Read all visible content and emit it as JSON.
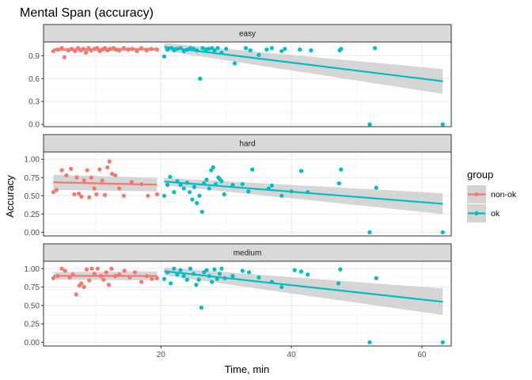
{
  "chart_data": {
    "type": "scatter",
    "title": "Mental Span (accuracy)",
    "xlabel": "Time, min",
    "ylabel": "Accuracy",
    "xlim": [
      2,
      64.5
    ],
    "x_ticks": [
      20,
      40,
      60
    ],
    "grid": true,
    "legend": {
      "title": "group",
      "position": "right",
      "entries": [
        {
          "name": "non-ok",
          "color": "#F8766D"
        },
        {
          "name": "ok",
          "color": "#00BFC4"
        }
      ]
    },
    "colors": {
      "non-ok": "#F8766D",
      "ok": "#00BFC4",
      "ribbon": "#cccccc"
    },
    "panels": [
      {
        "facet": "easy",
        "ylim": [
          -0.03,
          1.08
        ],
        "y_ticks": [
          0.0,
          0.3,
          0.6,
          0.9
        ],
        "y_tick_labels": [
          "0.0",
          "0.3",
          "0.6",
          "0.9"
        ],
        "series": [
          {
            "name": "non-ok",
            "points": [
              [
                3.5,
                0.96
              ],
              [
                4.2,
                0.98
              ],
              [
                4.8,
                1.0
              ],
              [
                5.2,
                0.88
              ],
              [
                5.8,
                0.97
              ],
              [
                6.3,
                0.99
              ],
              [
                6.8,
                0.96
              ],
              [
                7.3,
                1.0
              ],
              [
                7.7,
                0.97
              ],
              [
                8.1,
                0.99
              ],
              [
                8.5,
                0.94
              ],
              [
                8.9,
                1.0
              ],
              [
                9.3,
                0.97
              ],
              [
                9.8,
                0.99
              ],
              [
                10.2,
                1.0
              ],
              [
                10.6,
                0.96
              ],
              [
                11.0,
                0.98
              ],
              [
                11.4,
                1.0
              ],
              [
                11.8,
                0.97
              ],
              [
                12.2,
                0.99
              ],
              [
                12.7,
                1.0
              ],
              [
                13.1,
                0.98
              ],
              [
                13.6,
                0.97
              ],
              [
                14.3,
                1.0
              ],
              [
                15.0,
                0.98
              ],
              [
                15.6,
                0.99
              ],
              [
                16.3,
                0.96
              ],
              [
                17.0,
                1.0
              ],
              [
                17.8,
                0.97
              ],
              [
                18.5,
                0.99
              ],
              [
                19.4,
                0.98
              ]
            ],
            "fit": {
              "x": [
                3.5,
                19.4
              ],
              "y": [
                0.98,
                0.985
              ],
              "ci_low": [
                0.955,
                0.96
              ],
              "ci_high": [
                1.005,
                1.01
              ]
            }
          },
          {
            "name": "ok",
            "points": [
              [
                20.5,
                0.89
              ],
              [
                21.0,
                0.98
              ],
              [
                21.6,
                1.0
              ],
              [
                22.0,
                0.97
              ],
              [
                22.5,
                0.99
              ],
              [
                23.0,
                1.0
              ],
              [
                23.5,
                0.96
              ],
              [
                24.0,
                0.98
              ],
              [
                24.5,
                1.0
              ],
              [
                25.0,
                0.99
              ],
              [
                25.5,
                0.97
              ],
              [
                26.0,
                0.6
              ],
              [
                26.4,
                1.0
              ],
              [
                26.9,
                0.98
              ],
              [
                27.3,
                0.99
              ],
              [
                27.8,
                1.0
              ],
              [
                28.2,
                0.97
              ],
              [
                28.7,
                1.0
              ],
              [
                29.3,
                0.94
              ],
              [
                30.0,
                0.99
              ],
              [
                31.3,
                0.8
              ],
              [
                33.0,
                1.0
              ],
              [
                33.7,
                0.97
              ],
              [
                35.0,
                0.91
              ],
              [
                36.2,
                0.98
              ],
              [
                37.0,
                1.0
              ],
              [
                38.5,
                0.96
              ],
              [
                39.0,
                0.99
              ],
              [
                41.3,
                0.98
              ],
              [
                43.0,
                0.97
              ],
              [
                47.4,
                0.97
              ],
              [
                47.6,
                0.99
              ],
              [
                52.0,
                0.0
              ],
              [
                52.8,
                1.0
              ],
              [
                63.2,
                0.0
              ]
            ],
            "fit": {
              "x": [
                20.5,
                63.2
              ],
              "y": [
                1.015,
                0.565
              ],
              "ci_low": [
                0.965,
                0.4
              ],
              "ci_high": [
                1.065,
                0.725
              ]
            }
          }
        ]
      },
      {
        "facet": "hard",
        "ylim": [
          -0.05,
          1.1
        ],
        "y_ticks": [
          0.0,
          0.25,
          0.5,
          0.75,
          1.0
        ],
        "y_tick_labels": [
          "0.00",
          "0.25",
          "0.50",
          "0.75",
          "1.00"
        ],
        "series": [
          {
            "name": "non-ok",
            "points": [
              [
                3.5,
                0.55
              ],
              [
                4.0,
                0.58
              ],
              [
                4.8,
                0.85
              ],
              [
                5.5,
                0.78
              ],
              [
                6.2,
                0.87
              ],
              [
                6.7,
                0.52
              ],
              [
                7.1,
                0.75
              ],
              [
                7.4,
                0.53
              ],
              [
                7.8,
                0.49
              ],
              [
                8.2,
                0.71
              ],
              [
                8.7,
                0.85
              ],
              [
                9.0,
                0.48
              ],
              [
                9.3,
                0.75
              ],
              [
                9.8,
                0.6
              ],
              [
                10.1,
                0.52
              ],
              [
                10.6,
                0.86
              ],
              [
                11.0,
                0.71
              ],
              [
                11.4,
                0.51
              ],
              [
                11.8,
                0.89
              ],
              [
                12.1,
                0.97
              ],
              [
                12.5,
                0.8
              ],
              [
                13.0,
                0.78
              ],
              [
                13.6,
                0.6
              ],
              [
                14.3,
                0.5
              ],
              [
                15.5,
                0.69
              ],
              [
                17.0,
                0.66
              ],
              [
                18.0,
                0.5
              ],
              [
                19.4,
                0.52
              ]
            ],
            "fit": {
              "x": [
                3.5,
                19.4
              ],
              "y": [
                0.685,
                0.652
              ],
              "ci_low": [
                0.58,
                0.56
              ],
              "ci_high": [
                0.79,
                0.745
              ]
            }
          },
          {
            "name": "ok",
            "points": [
              [
                20.5,
                0.5
              ],
              [
                21.0,
                0.65
              ],
              [
                21.4,
                0.76
              ],
              [
                22.0,
                0.55
              ],
              [
                22.5,
                0.7
              ],
              [
                23.0,
                0.65
              ],
              [
                23.5,
                0.6
              ],
              [
                24.0,
                0.68
              ],
              [
                24.4,
                0.55
              ],
              [
                24.8,
                0.45
              ],
              [
                25.1,
                0.62
              ],
              [
                25.5,
                0.4
              ],
              [
                25.9,
                0.5
              ],
              [
                26.3,
                0.28
              ],
              [
                26.6,
                0.67
              ],
              [
                27.0,
                0.72
              ],
              [
                27.4,
                0.6
              ],
              [
                27.7,
                0.85
              ],
              [
                28.0,
                0.89
              ],
              [
                28.4,
                0.66
              ],
              [
                28.8,
                0.75
              ],
              [
                29.0,
                0.73
              ],
              [
                29.3,
                0.7
              ],
              [
                29.7,
                0.52
              ],
              [
                31.0,
                0.65
              ],
              [
                32.5,
                0.66
              ],
              [
                33.4,
                0.56
              ],
              [
                34.0,
                0.86
              ],
              [
                36.5,
                0.6
              ],
              [
                37.0,
                0.64
              ],
              [
                38.5,
                0.5
              ],
              [
                40.0,
                0.56
              ],
              [
                41.5,
                0.84
              ],
              [
                42.5,
                0.55
              ],
              [
                47.3,
                0.67
              ],
              [
                47.6,
                0.86
              ],
              [
                52.0,
                0.0
              ],
              [
                53.0,
                0.61
              ],
              [
                63.2,
                0.0
              ]
            ],
            "fit": {
              "x": [
                20.5,
                63.2
              ],
              "y": [
                0.695,
                0.39
              ],
              "ci_low": [
                0.645,
                0.25
              ],
              "ci_high": [
                0.745,
                0.535
              ]
            }
          }
        ]
      },
      {
        "facet": "medium",
        "ylim": [
          -0.05,
          1.1
        ],
        "y_ticks": [
          0.0,
          0.25,
          0.5,
          0.75,
          1.0
        ],
        "y_tick_labels": [
          "0.00",
          "0.25",
          "0.50",
          "0.75",
          "1.00"
        ],
        "series": [
          {
            "name": "non-ok",
            "points": [
              [
                3.5,
                0.87
              ],
              [
                4.2,
                0.9
              ],
              [
                4.8,
                1.0
              ],
              [
                5.3,
                0.97
              ],
              [
                6.0,
                0.88
              ],
              [
                6.5,
                0.92
              ],
              [
                7.0,
                0.65
              ],
              [
                7.5,
                0.77
              ],
              [
                7.8,
                0.8
              ],
              [
                8.2,
                0.75
              ],
              [
                8.6,
                0.99
              ],
              [
                9.0,
                0.84
              ],
              [
                9.4,
                1.0
              ],
              [
                9.8,
                0.93
              ],
              [
                10.3,
                1.0
              ],
              [
                10.8,
                0.9
              ],
              [
                11.2,
                0.85
              ],
              [
                11.6,
                0.95
              ],
              [
                12.0,
                0.78
              ],
              [
                12.4,
                1.0
              ],
              [
                13.0,
                0.9
              ],
              [
                13.6,
                0.92
              ],
              [
                14.4,
                0.97
              ],
              [
                15.2,
                0.88
              ],
              [
                16.0,
                0.95
              ],
              [
                17.0,
                0.82
              ],
              [
                17.8,
                0.9
              ],
              [
                18.6,
                0.86
              ],
              [
                19.4,
                0.87
              ]
            ],
            "fit": {
              "x": [
                3.5,
                19.4
              ],
              "y": [
                0.902,
                0.9
              ],
              "ci_low": [
                0.85,
                0.84
              ],
              "ci_high": [
                0.955,
                0.96
              ]
            }
          },
          {
            "name": "ok",
            "points": [
              [
                20.5,
                0.86
              ],
              [
                21.0,
                0.95
              ],
              [
                21.5,
                0.8
              ],
              [
                22.0,
                1.0
              ],
              [
                22.5,
                0.92
              ],
              [
                23.0,
                0.98
              ],
              [
                23.5,
                0.9
              ],
              [
                24.0,
                0.85
              ],
              [
                24.5,
                1.0
              ],
              [
                25.0,
                0.93
              ],
              [
                25.4,
                0.78
              ],
              [
                25.8,
                0.85
              ],
              [
                26.2,
                0.47
              ],
              [
                26.6,
                0.95
              ],
              [
                27.0,
                0.98
              ],
              [
                27.4,
                0.9
              ],
              [
                27.8,
                0.82
              ],
              [
                28.2,
                0.99
              ],
              [
                28.6,
                0.86
              ],
              [
                29.0,
                0.93
              ],
              [
                29.3,
                1.0
              ],
              [
                29.8,
                0.87
              ],
              [
                31.0,
                0.9
              ],
              [
                32.5,
                0.97
              ],
              [
                33.5,
                0.95
              ],
              [
                35.0,
                0.88
              ],
              [
                37.0,
                0.82
              ],
              [
                38.5,
                0.75
              ],
              [
                40.5,
                0.98
              ],
              [
                41.5,
                0.96
              ],
              [
                42.5,
                0.92
              ],
              [
                47.2,
                0.8
              ],
              [
                47.5,
                0.99
              ],
              [
                52.0,
                0.0
              ],
              [
                53.0,
                0.87
              ],
              [
                63.2,
                0.0
              ]
            ],
            "fit": {
              "x": [
                20.5,
                63.2
              ],
              "y": [
                0.965,
                0.55
              ],
              "ci_low": [
                0.91,
                0.37
              ],
              "ci_high": [
                1.015,
                0.73
              ]
            }
          }
        ]
      }
    ]
  }
}
